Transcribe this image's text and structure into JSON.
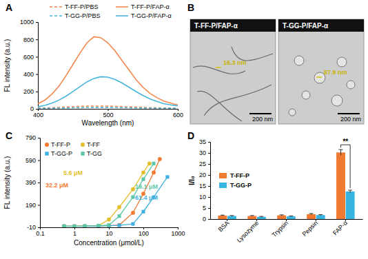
{
  "chart_data": [
    {
      "type": "line",
      "panel": "A",
      "x_label": "Wavelength (nm)",
      "y_label": "FL intensity (a.u.)",
      "xlim": [
        400,
        600
      ],
      "xticks": [
        400,
        500,
        600
      ],
      "ylim": [
        0,
        1000
      ],
      "yticks": [
        0,
        200,
        400,
        600,
        800,
        1000
      ],
      "x": [
        400,
        410,
        420,
        430,
        440,
        450,
        460,
        470,
        480,
        490,
        500,
        510,
        520,
        530,
        540,
        550,
        560,
        570,
        580,
        590,
        600
      ],
      "series": [
        {
          "name": "T-FF-P/PBS",
          "color": "#f4874b",
          "line_style": "dashed",
          "values": [
            8,
            10,
            13,
            17,
            21,
            25,
            28,
            31,
            32,
            32,
            31,
            29,
            26,
            23,
            20,
            17,
            14,
            12,
            10,
            9,
            8
          ]
        },
        {
          "name": "T-FF-P/FAP-α",
          "color": "#f4874b",
          "line_style": "solid",
          "values": [
            60,
            100,
            170,
            260,
            380,
            510,
            640,
            760,
            830,
            820,
            760,
            670,
            560,
            450,
            340,
            250,
            180,
            130,
            90,
            65,
            45
          ]
        },
        {
          "name": "T-GG-P/PBS",
          "color": "#45b5dc",
          "line_style": "dashed",
          "values": [
            4,
            5,
            6,
            8,
            10,
            12,
            13,
            14,
            15,
            15,
            15,
            14,
            13,
            12,
            10,
            9,
            8,
            7,
            6,
            5,
            5
          ]
        },
        {
          "name": "T-GG-P/FAP-α",
          "color": "#45b5dc",
          "line_style": "solid",
          "values": [
            25,
            40,
            65,
            100,
            145,
            200,
            255,
            310,
            350,
            370,
            365,
            340,
            300,
            250,
            200,
            155,
            115,
            85,
            60,
            45,
            35
          ]
        }
      ]
    },
    {
      "type": "image",
      "panel": "B",
      "images": [
        {
          "title": "T-FF-P/FAP-α",
          "annotation": "16.3 nm",
          "scale_bar": "200 nm"
        },
        {
          "title": "T-GG-P/FAP-α",
          "annotation": "87.9 nm",
          "scale_bar": "200 nm"
        }
      ]
    },
    {
      "type": "line",
      "panel": "C",
      "log": "x",
      "x_label": "Concentration (μmol/L)",
      "y_label": "FL intensity (a.u.)",
      "xlim": [
        0.1,
        1000
      ],
      "xticks": [
        0.1,
        1,
        10,
        100,
        1000
      ],
      "ylim": [
        -10,
        790
      ],
      "yticks": [
        -10,
        190,
        390,
        590,
        790
      ],
      "series": [
        {
          "name": "T-FF-P",
          "color": "#f07a32",
          "marker": "circle",
          "annotation": "32.2 μM",
          "x": [
            0.5,
            1,
            2,
            5,
            10,
            20,
            50,
            100,
            200,
            300
          ],
          "values": [
            0,
            0,
            0,
            2,
            5,
            10,
            120,
            290,
            480,
            600
          ]
        },
        {
          "name": "T-FF",
          "color": "#e3be2c",
          "marker": "circle",
          "annotation": "5.6 μM",
          "x": [
            0.5,
            1,
            2,
            5,
            10,
            20,
            50,
            100,
            150
          ],
          "values": [
            0,
            0,
            2,
            5,
            60,
            170,
            330,
            480,
            560
          ]
        },
        {
          "name": "T-GG-P",
          "color": "#3fb0e0",
          "marker": "square",
          "annotation": "61.4 μM",
          "x": [
            0.5,
            1,
            2,
            5,
            10,
            20,
            50,
            100,
            200,
            500
          ],
          "values": [
            0,
            0,
            0,
            2,
            4,
            8,
            20,
            130,
            260,
            440
          ]
        },
        {
          "name": "T-GG",
          "color": "#5cc6a8",
          "marker": "square",
          "annotation": "19.1 μM",
          "x": [
            0.5,
            1,
            2,
            5,
            10,
            20,
            50,
            100,
            200
          ],
          "values": [
            0,
            0,
            2,
            5,
            10,
            90,
            260,
            420,
            560
          ]
        }
      ]
    },
    {
      "type": "bar",
      "panel": "D",
      "y_label": "I/I₀",
      "annotation": "**",
      "categories": [
        "BSA",
        "Lysozyme",
        "Trypsin",
        "Pepsin",
        "FAP-α"
      ],
      "ylim": [
        0,
        35
      ],
      "yticks": [
        0,
        5,
        10,
        15,
        20,
        25,
        30,
        35
      ],
      "series": [
        {
          "name": "T-FF-P",
          "color": "#f07a32",
          "values": [
            1.6,
            1.4,
            1.7,
            2.2,
            30.2
          ],
          "errors": [
            0.2,
            0.2,
            0.2,
            0.3,
            1.3
          ]
        },
        {
          "name": "T-GG-P",
          "color": "#38b4e0",
          "values": [
            1.4,
            1.0,
            1.2,
            1.8,
            12.5
          ],
          "errors": [
            0.2,
            0.2,
            0.2,
            0.2,
            0.6
          ]
        }
      ]
    }
  ]
}
